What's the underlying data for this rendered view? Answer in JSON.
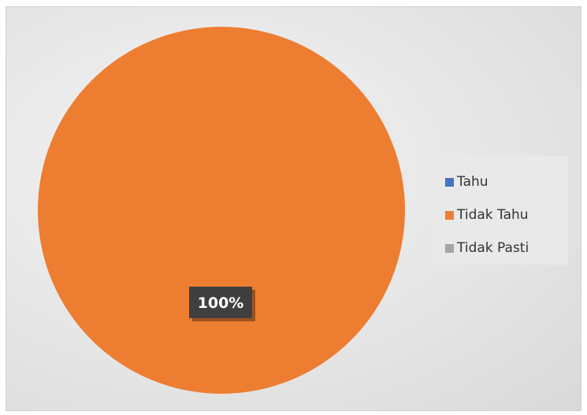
{
  "chart_data": {
    "type": "pie",
    "title": "",
    "categories": [
      "Tahu",
      "Tidak Tahu",
      "Tidak Pasti"
    ],
    "values": [
      0,
      100,
      0
    ],
    "colors": [
      "#4472c4",
      "#ed7d31",
      "#a5a5a5"
    ],
    "data_labels": [
      "",
      "100%",
      ""
    ],
    "legend_position": "right"
  }
}
